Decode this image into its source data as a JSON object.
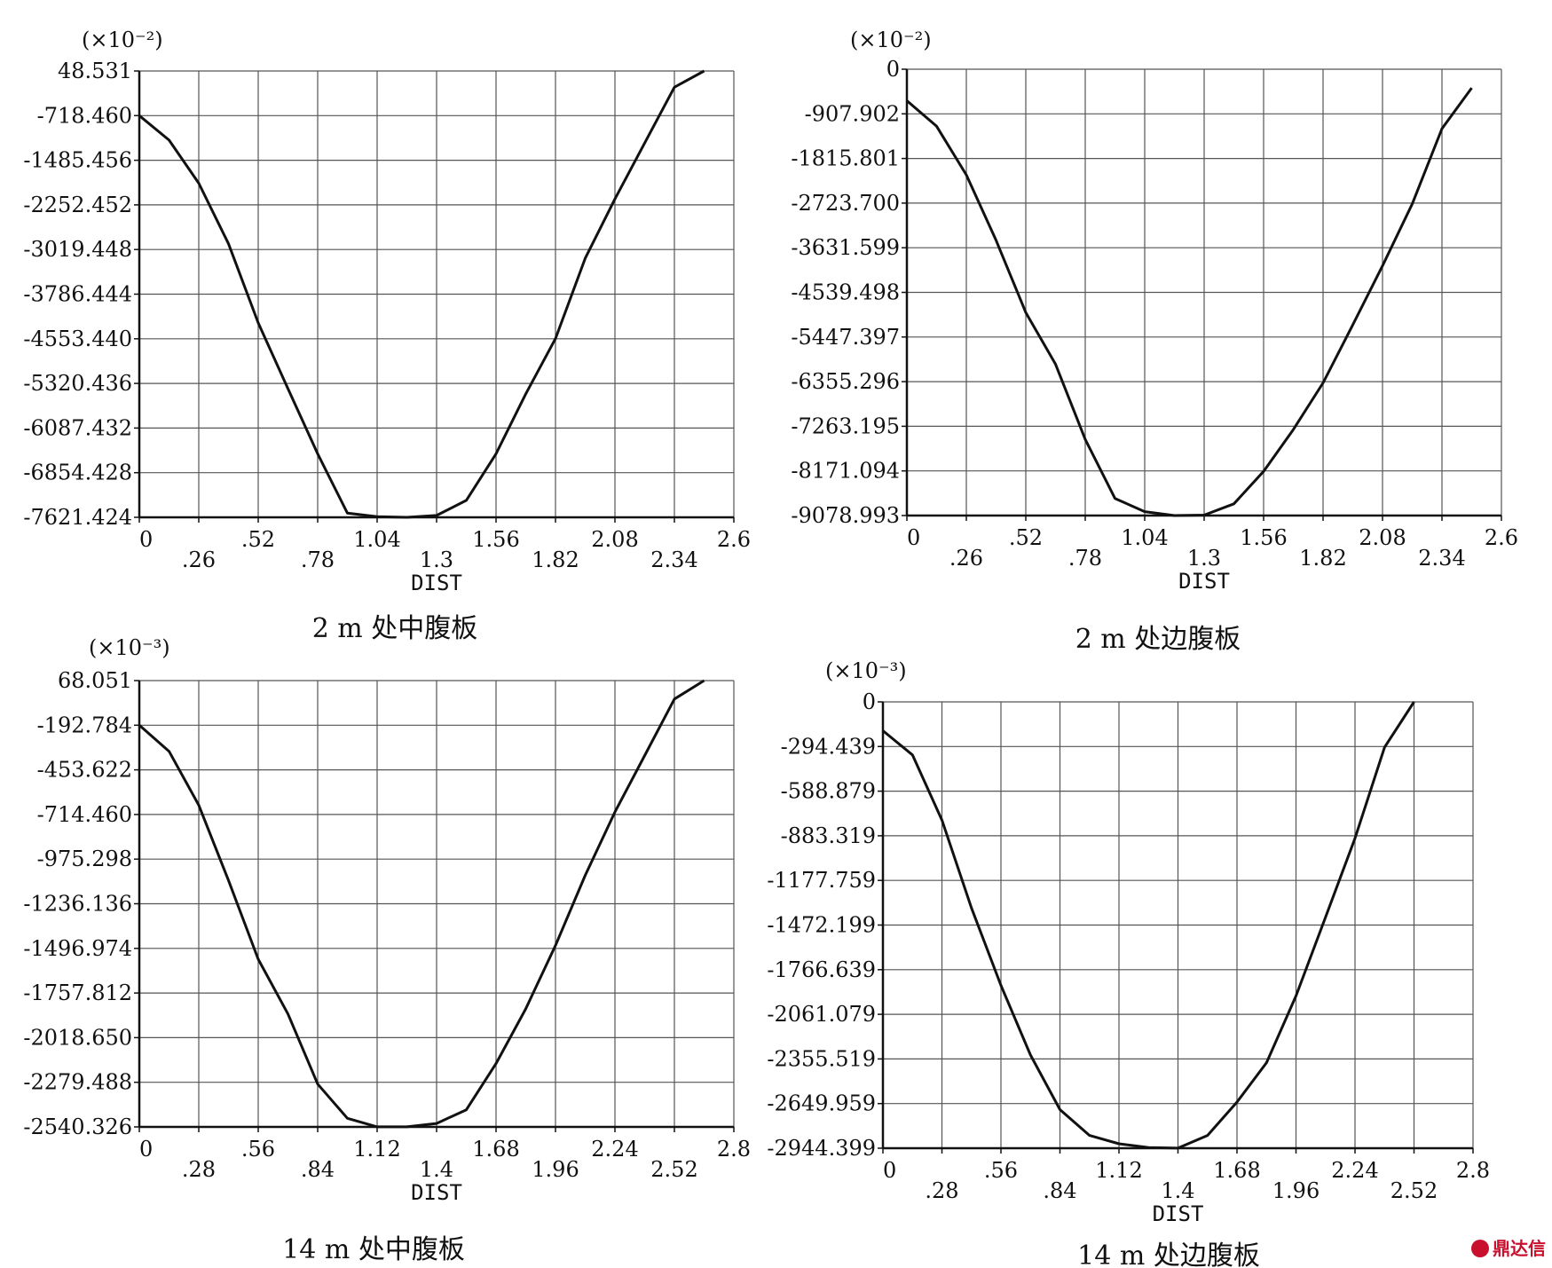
{
  "watermark": {
    "text": "鼎达信",
    "color": "#c8102e"
  },
  "colors": {
    "line": "#111111",
    "grid": "#555555",
    "axis": "#111111"
  },
  "chart_data": [
    {
      "type": "line",
      "caption": "2 m 处中腹板",
      "unit": "(×10⁻²)",
      "xlabel": "DIST",
      "xlim": [
        0,
        2.6
      ],
      "ylim": [
        -7621.424,
        48.531
      ],
      "x_tick_values": [
        0,
        0.26,
        0.52,
        0.78,
        1.04,
        1.3,
        1.56,
        1.82,
        2.08,
        2.34,
        2.6
      ],
      "x_tick_labels": [
        "0",
        ".26",
        ".52",
        ".78",
        "1.04",
        "1.3",
        "1.56",
        "1.82",
        "2.08",
        "2.34",
        "2.6"
      ],
      "y_tick_values": [
        48.531,
        -718.46,
        -1485.456,
        -2252.452,
        -3019.448,
        -3786.444,
        -4553.44,
        -5320.436,
        -6087.432,
        -6854.428,
        -7621.424
      ],
      "y_tick_labels": [
        "48.531",
        "-718.460",
        "-1485.456",
        "-2252.452",
        "-3019.448",
        "-3786.444",
        "-4553.440",
        "-5320.436",
        "-6087.432",
        "-6854.428",
        "-7621.424"
      ],
      "grid": true,
      "x": [
        0,
        0.13,
        0.26,
        0.39,
        0.52,
        0.65,
        0.78,
        0.91,
        1.04,
        1.17,
        1.3,
        1.43,
        1.56,
        1.69,
        1.82,
        1.95,
        2.08,
        2.21,
        2.34,
        2.47
      ],
      "y": [
        -718,
        -1140,
        -1880,
        -2920,
        -4280,
        -5410,
        -6530,
        -7550,
        -7610,
        -7621,
        -7590,
        -7330,
        -6530,
        -5500,
        -4550,
        -3170,
        -2150,
        -1190,
        -230,
        48
      ]
    },
    {
      "type": "line",
      "caption": "2 m 处边腹板",
      "unit": "(×10⁻²)",
      "xlabel": "DIST",
      "xlim": [
        0,
        2.6
      ],
      "ylim": [
        -9078.993,
        0
      ],
      "x_tick_values": [
        0,
        0.26,
        0.52,
        0.78,
        1.04,
        1.3,
        1.56,
        1.82,
        2.08,
        2.34,
        2.6
      ],
      "x_tick_labels": [
        "0",
        ".26",
        ".52",
        ".78",
        "1.04",
        "1.3",
        "1.56",
        "1.82",
        "2.08",
        "2.34",
        "2.6"
      ],
      "y_tick_values": [
        0,
        -907.902,
        -1815.801,
        -2723.7,
        -3631.599,
        -4539.498,
        -5447.397,
        -6355.296,
        -7263.195,
        -8171.094,
        -9078.993
      ],
      "y_tick_labels": [
        "0",
        "-907.902",
        "-1815.801",
        "-2723.700",
        "-3631.599",
        "-4539.498",
        "-5447.397",
        "-6355.296",
        "-7263.195",
        "-8171.094",
        "-9078.993"
      ],
      "grid": true,
      "x": [
        0,
        0.13,
        0.26,
        0.39,
        0.52,
        0.65,
        0.78,
        0.91,
        1.04,
        1.17,
        1.3,
        1.43,
        1.56,
        1.69,
        1.82,
        1.95,
        2.08,
        2.21,
        2.34,
        2.47
      ],
      "y": [
        -640,
        -1160,
        -2150,
        -3480,
        -4950,
        -6000,
        -7530,
        -8730,
        -9000,
        -9079,
        -9070,
        -8840,
        -8180,
        -7330,
        -6380,
        -5200,
        -4000,
        -2740,
        -1210,
        -380
      ]
    },
    {
      "type": "line",
      "caption": "14 m 处中腹板",
      "unit": "(×10⁻³)",
      "xlabel": "DIST",
      "xlim": [
        0,
        2.8
      ],
      "ylim": [
        -2540.326,
        68.051
      ],
      "x_tick_values": [
        0,
        0.28,
        0.56,
        0.84,
        1.12,
        1.4,
        1.68,
        1.96,
        2.24,
        2.52,
        2.8
      ],
      "x_tick_labels": [
        "0",
        ".28",
        ".56",
        ".84",
        "1.12",
        "1.4",
        "1.68",
        "1.96",
        "2.24",
        "2.52",
        "2.8"
      ],
      "y_tick_values": [
        68.051,
        -192.784,
        -453.622,
        -714.46,
        -975.298,
        -1236.136,
        -1496.974,
        -1757.812,
        -2018.65,
        -2279.488,
        -2540.326
      ],
      "y_tick_labels": [
        "68.051",
        "-192.784",
        "-453.622",
        "-714.460",
        "-975.298",
        "-1236.136",
        "-1496.974",
        "-1757.812",
        "-2018.650",
        "-2279.488",
        "-2540.326"
      ],
      "grid": true,
      "x": [
        0,
        0.14,
        0.28,
        0.42,
        0.56,
        0.7,
        0.84,
        0.98,
        1.12,
        1.26,
        1.4,
        1.54,
        1.68,
        1.82,
        1.96,
        2.1,
        2.24,
        2.38,
        2.52,
        2.66
      ],
      "y": [
        -193,
        -345,
        -660,
        -1100,
        -1560,
        -1880,
        -2290,
        -2490,
        -2540,
        -2540,
        -2520,
        -2440,
        -2170,
        -1850,
        -1480,
        -1070,
        -700,
        -370,
        -40,
        68
      ]
    },
    {
      "type": "line",
      "caption": "14 m 处边腹板",
      "unit": "(×10⁻³)",
      "xlabel": "DIST",
      "xlim": [
        0,
        2.8
      ],
      "ylim": [
        -2944.399,
        0
      ],
      "x_tick_values": [
        0,
        0.28,
        0.56,
        0.84,
        1.12,
        1.4,
        1.68,
        1.96,
        2.24,
        2.52,
        2.8
      ],
      "x_tick_labels": [
        "0",
        ".28",
        ".56",
        ".84",
        "1.12",
        "1.4",
        "1.68",
        "1.96",
        "2.24",
        "2.52",
        "2.8"
      ],
      "y_tick_values": [
        0,
        -294.439,
        -588.879,
        -883.319,
        -1177.759,
        -1472.199,
        -1766.639,
        -2061.079,
        -2355.519,
        -2649.959,
        -2944.399
      ],
      "y_tick_labels": [
        "0",
        "-294.439",
        "-588.879",
        "-883.319",
        "-1177.759",
        "-1472.199",
        "-1766.639",
        "-2061.079",
        "-2355.519",
        "-2649.959",
        "-2944.399"
      ],
      "grid": true,
      "x": [
        0,
        0.14,
        0.28,
        0.42,
        0.56,
        0.7,
        0.84,
        0.98,
        1.12,
        1.26,
        1.4,
        1.54,
        1.68,
        1.82,
        1.96,
        2.1,
        2.24,
        2.38,
        2.52
      ],
      "y": [
        -190,
        -350,
        -780,
        -1360,
        -1870,
        -2330,
        -2690,
        -2860,
        -2915,
        -2940,
        -2944,
        -2860,
        -2640,
        -2380,
        -1940,
        -1420,
        -900,
        -300,
        0
      ]
    }
  ]
}
